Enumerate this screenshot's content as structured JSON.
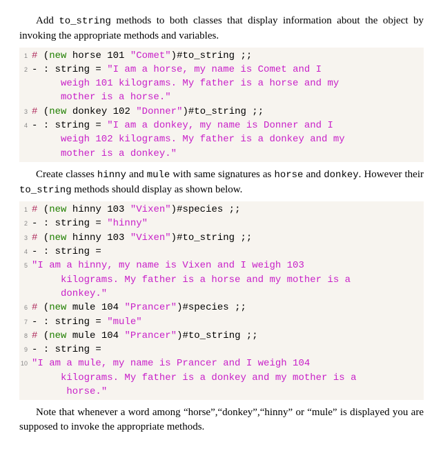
{
  "para1_a": "Add ",
  "para1_tt": "to_string",
  "para1_b": " methods to both classes that display information about the object by invoking the appropriate methods and variables.",
  "block1": {
    "l1_hash": "#",
    "l1_rest": " (new horse 101 \"Comet\")#to_string ;;",
    "l2_a": "- : string = ",
    "l2_b": "\"I am a horse, my name is Comet and I weigh 101 kilograms. My father is a horse and my mother is a horse.\"",
    "l3_hash": "#",
    "l3_rest": " (new donkey 102 \"Donner\")#to_string ;;",
    "l4_a": "- : string = ",
    "l4_b": "\"I am a donkey, my name is Donner and I weigh 102 kilograms. My father is a donkey and my mother is a donkey.\""
  },
  "para2_a": "Create classes ",
  "para2_tt1": "hinny",
  "para2_b": " and ",
  "para2_tt2": "mule",
  "para2_c": " with same signatures as ",
  "para2_tt3": "horse",
  "para2_d": " and ",
  "para2_tt4": "donkey",
  "para2_e": ". However their ",
  "para2_tt5": "to_string",
  "para2_f": " methods should display as shown below.",
  "block2": {
    "l1_hash": "#",
    "l1_rest": " (new hinny 103 \"Vixen\")#species ;;",
    "l2_a": "- : string = ",
    "l2_b": "\"hinny\"",
    "l3_hash": "#",
    "l3_rest": " (new hinny 103 \"Vixen\")#to_string ;;",
    "l4_a": "- : string =",
    "l5": "\"I am a hinny, my name is Vixen and I weigh 103 kilograms. My father is a horse and my mother is a donkey.\"",
    "l6_hash": "#",
    "l6_rest": " (new mule 104 \"Prancer\")#species ;;",
    "l7_a": "- : string = ",
    "l7_b": "\"mule\"",
    "l8_hash": "#",
    "l8_rest": " (new mule 104 \"Prancer\")#to_string ;;",
    "l9_a": "- : string =",
    "l10": "\"I am a mule, my name is Prancer and I weigh 104 kilograms. My father is a donkey and my mother is a horse.\""
  },
  "para3": "Note that whenever a word among “horse”,“donkey”,“hinny” or “mule” is displayed you are supposed to invoke the appropriate methods."
}
